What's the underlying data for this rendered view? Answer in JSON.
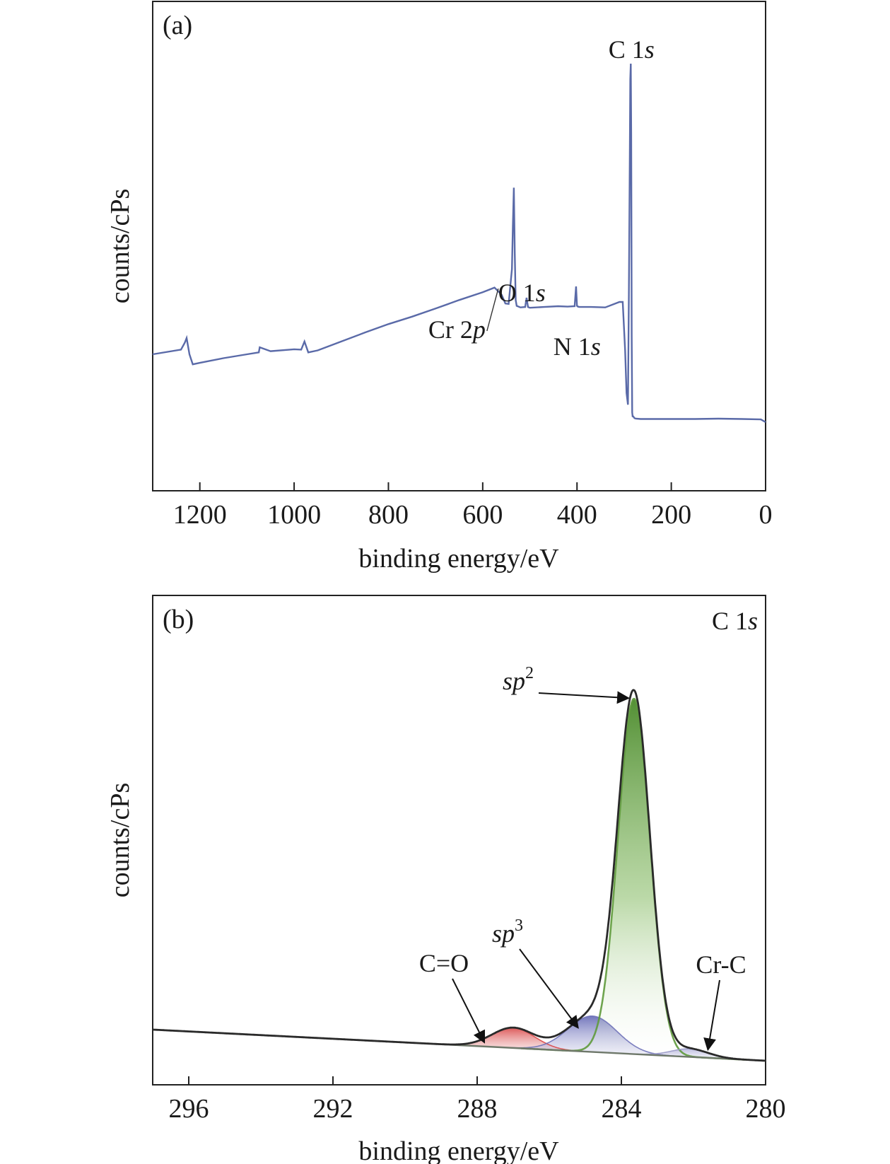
{
  "chart_data": [
    {
      "panel": "(a)",
      "type": "line",
      "xlabel": "binding energy/eV",
      "ylabel": "counts/cPs",
      "xlim": [
        1300,
        0
      ],
      "x_reversed": true,
      "xticks": [
        1200,
        1000,
        800,
        600,
        400,
        200,
        0
      ],
      "y_ticks_shown": false,
      "grid": false,
      "series_color": "#5a6aa8",
      "series": [
        {
          "x": [
            1300,
            1240,
            1232,
            1228,
            1222,
            1215,
            1200,
            1150,
            1100,
            1075,
            1073,
            1050,
            1000,
            985,
            978,
            970,
            950,
            900,
            850,
            800,
            750,
            700,
            650,
            600,
            575,
            560,
            552,
            545,
            538,
            536,
            534,
            532,
            530,
            528,
            520,
            510,
            507,
            504,
            500,
            470,
            440,
            420,
            405,
            402,
            400,
            398,
            395,
            370,
            340,
            310,
            303,
            298,
            295,
            292,
            290,
            288,
            287,
            286,
            285,
            284.5,
            284,
            283,
            282,
            281,
            278,
            275,
            265,
            230,
            200,
            150,
            100,
            50,
            10,
            0
          ],
          "y": [
            0.25,
            0.262,
            0.28,
            0.292,
            0.25,
            0.224,
            0.228,
            0.24,
            0.25,
            0.255,
            0.268,
            0.258,
            0.263,
            0.262,
            0.283,
            0.255,
            0.26,
            0.283,
            0.306,
            0.328,
            0.347,
            0.368,
            0.39,
            0.41,
            0.422,
            0.404,
            0.381,
            0.38,
            0.47,
            0.58,
            0.68,
            0.51,
            0.39,
            0.375,
            0.371,
            0.372,
            0.396,
            0.372,
            0.37,
            0.372,
            0.374,
            0.373,
            0.374,
            0.425,
            0.375,
            0.373,
            0.372,
            0.372,
            0.371,
            0.385,
            0.385,
            0.26,
            0.15,
            0.12,
            0.4,
            0.75,
            0.96,
            1.0,
            0.82,
            0.54,
            0.3,
            0.1,
            0.09,
            0.09,
            0.085,
            0.084,
            0.083,
            0.083,
            0.083,
            0.083,
            0.084,
            0.083,
            0.082,
            0.075
          ]
        }
      ],
      "annotations": [
        {
          "text": "C 1s",
          "x": 284.5,
          "y": 1.0
        },
        {
          "text": "O 1s",
          "x": 532,
          "y": 0.68
        },
        {
          "text": "N 1s",
          "x": 400,
          "y": 0.425
        },
        {
          "text": "Cr 2p",
          "x": 576,
          "y": 0.423
        }
      ]
    },
    {
      "panel": "(b)",
      "title": "C 1s",
      "type": "area",
      "xlabel": "binding energy/eV",
      "ylabel": "counts/cPs",
      "xlim": [
        297,
        280
      ],
      "x_reversed": true,
      "xticks": [
        296,
        292,
        288,
        284,
        280
      ],
      "y_ticks_shown": false,
      "grid": false,
      "background": {
        "x_start": 297,
        "y_start": 0.085,
        "x_end": 280,
        "y_end": 0.0
      },
      "components": [
        {
          "name": "C=O",
          "center": 287.0,
          "fwhm": 1.4,
          "height": 0.055,
          "color": "#d94a4a"
        },
        {
          "name": "sp3",
          "center": 284.8,
          "fwhm": 1.6,
          "height": 0.098,
          "color": "#6f72b8"
        },
        {
          "name": "sp2",
          "center": 283.65,
          "fwhm": 1.05,
          "height": 0.97,
          "color": "#5f9a3c"
        },
        {
          "name": "Cr-C",
          "center": 282.1,
          "fwhm": 1.2,
          "height": 0.022,
          "color": "#9a9ac8"
        }
      ],
      "envelope_color": "#2a2a2a",
      "labels": [
        {
          "text": "C=O",
          "points_to": [
            287.8,
            0.05
          ]
        },
        {
          "text": "sp3",
          "points_to": [
            285.2,
            0.09
          ]
        },
        {
          "text": "sp2",
          "points_to": [
            283.8,
            0.99
          ]
        },
        {
          "text": "Cr-C",
          "points_to": [
            281.6,
            0.03
          ]
        }
      ]
    }
  ],
  "ui": {
    "panel_a_label": "(a)",
    "panel_b_label": "(b)",
    "panel_b_corner_label": "C 1s"
  }
}
